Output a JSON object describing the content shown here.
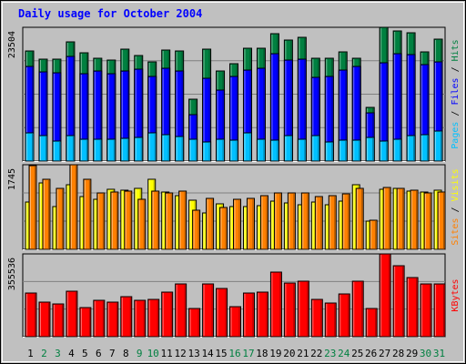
{
  "title": "Daily usage for October 2004",
  "colors": {
    "background": "#c0c0c0",
    "title": "#0000ff",
    "hits": "#008040",
    "files": "#0000ff",
    "pages": "#00c0ff",
    "visits": "#ffff00",
    "sites": "#ff8000",
    "kbytes": "#ff0000",
    "weekend_day": "#008040",
    "weekday": "#000000",
    "slash": "#000000"
  },
  "chart_data": [
    {
      "type": "bar",
      "panel": "hits-files-pages",
      "ymax_label": "23504",
      "ymax": 23504,
      "right_label": [
        {
          "text": "Pages",
          "color_key": "pages"
        },
        {
          "text": " / ",
          "color_key": "slash"
        },
        {
          "text": "Files",
          "color_key": "files"
        },
        {
          "text": " / ",
          "color_key": "slash"
        },
        {
          "text": "Hits",
          "color_key": "hits"
        }
      ],
      "categories": [
        "1",
        "2",
        "3",
        "4",
        "5",
        "6",
        "7",
        "8",
        "9",
        "10",
        "11",
        "12",
        "13",
        "14",
        "15",
        "16",
        "17",
        "18",
        "19",
        "20",
        "21",
        "22",
        "23",
        "24",
        "25",
        "26",
        "27",
        "28",
        "29",
        "30",
        "31"
      ],
      "series": [
        {
          "name": "Hits",
          "color_key": "hits",
          "values": [
            19300,
            17900,
            17900,
            21000,
            19000,
            18000,
            17800,
            19600,
            18600,
            17400,
            19500,
            19300,
            10800,
            19600,
            15800,
            17100,
            19800,
            19900,
            22400,
            21200,
            21700,
            18000,
            18000,
            19200,
            18000,
            9500,
            23504,
            22800,
            22600,
            19200,
            21500
          ]
        },
        {
          "name": "Files",
          "color_key": "files",
          "values": [
            16700,
            15700,
            15500,
            18400,
            15300,
            15900,
            15300,
            15800,
            16100,
            14900,
            16300,
            15900,
            8100,
            14500,
            12500,
            14900,
            16000,
            16300,
            18900,
            17800,
            17900,
            14700,
            14900,
            16000,
            16600,
            8400,
            17300,
            18900,
            18700,
            17000,
            17400
          ]
        },
        {
          "name": "Pages",
          "color_key": "pages",
          "values": [
            4900,
            4400,
            3500,
            4400,
            3900,
            3900,
            3900,
            4000,
            4100,
            5000,
            4600,
            4300,
            3900,
            3400,
            3800,
            3700,
            4900,
            3900,
            3700,
            4400,
            3900,
            4500,
            3400,
            3700,
            3700,
            4200,
            3500,
            3900,
            4400,
            4600,
            5300
          ]
        }
      ]
    },
    {
      "type": "bar",
      "panel": "visits-sites",
      "ymax_label": "1745",
      "ymax": 1745,
      "right_label": [
        {
          "text": "Sites",
          "color_key": "sites"
        },
        {
          "text": " / ",
          "color_key": "slash"
        },
        {
          "text": "Visits",
          "color_key": "visits"
        }
      ],
      "categories": [
        "1",
        "2",
        "3",
        "4",
        "5",
        "6",
        "7",
        "8",
        "9",
        "10",
        "11",
        "12",
        "13",
        "14",
        "15",
        "16",
        "17",
        "18",
        "19",
        "20",
        "21",
        "22",
        "23",
        "24",
        "25",
        "26",
        "27",
        "28",
        "29",
        "30",
        "31"
      ],
      "series": [
        {
          "name": "Visits",
          "color_key": "visits",
          "values": [
            970,
            1370,
            880,
            1340,
            1080,
            1030,
            1240,
            1220,
            1260,
            1450,
            1190,
            1100,
            1020,
            750,
            930,
            890,
            880,
            910,
            1000,
            950,
            920,
            970,
            920,
            1000,
            1330,
            580,
            1230,
            1260,
            1200,
            1180,
            1220
          ]
        },
        {
          "name": "Sites",
          "color_key": "sites",
          "values": [
            1730,
            1440,
            1250,
            1750,
            1440,
            1170,
            1190,
            1200,
            1030,
            1210,
            1160,
            1210,
            800,
            1050,
            860,
            1030,
            1060,
            1110,
            1160,
            1170,
            1160,
            1090,
            1100,
            1150,
            1250,
            600,
            1270,
            1260,
            1220,
            1170,
            1190
          ]
        }
      ]
    },
    {
      "type": "bar",
      "panel": "kbytes",
      "ymax_label": "355536",
      "ymax": 355536,
      "right_label": [
        {
          "text": "KBytes",
          "color_key": "kbytes"
        }
      ],
      "categories": [
        "1",
        "2",
        "3",
        "4",
        "5",
        "6",
        "7",
        "8",
        "9",
        "10",
        "11",
        "12",
        "13",
        "14",
        "15",
        "16",
        "17",
        "18",
        "19",
        "20",
        "21",
        "22",
        "23",
        "24",
        "25",
        "26",
        "27",
        "28",
        "29",
        "30",
        "31"
      ],
      "series": [
        {
          "name": "KBytes",
          "color_key": "kbytes",
          "values": [
            189000,
            149000,
            140000,
            195000,
            125000,
            155000,
            149000,
            172000,
            157000,
            162000,
            193000,
            227000,
            123000,
            225000,
            208000,
            127000,
            189000,
            193000,
            277000,
            229000,
            239000,
            159000,
            146000,
            184000,
            239000,
            122000,
            355536,
            305000,
            254000,
            226000,
            226000
          ]
        }
      ]
    }
  ],
  "days": [
    {
      "label": "1",
      "weekend": false
    },
    {
      "label": "2",
      "weekend": true
    },
    {
      "label": "3",
      "weekend": true
    },
    {
      "label": "4",
      "weekend": false
    },
    {
      "label": "5",
      "weekend": false
    },
    {
      "label": "6",
      "weekend": false
    },
    {
      "label": "7",
      "weekend": false
    },
    {
      "label": "8",
      "weekend": false
    },
    {
      "label": "9",
      "weekend": true
    },
    {
      "label": "10",
      "weekend": true
    },
    {
      "label": "11",
      "weekend": false
    },
    {
      "label": "12",
      "weekend": false
    },
    {
      "label": "13",
      "weekend": false
    },
    {
      "label": "14",
      "weekend": false
    },
    {
      "label": "15",
      "weekend": false
    },
    {
      "label": "16",
      "weekend": true
    },
    {
      "label": "17",
      "weekend": true
    },
    {
      "label": "18",
      "weekend": false
    },
    {
      "label": "19",
      "weekend": false
    },
    {
      "label": "20",
      "weekend": false
    },
    {
      "label": "21",
      "weekend": false
    },
    {
      "label": "22",
      "weekend": false
    },
    {
      "label": "23",
      "weekend": true
    },
    {
      "label": "24",
      "weekend": true
    },
    {
      "label": "25",
      "weekend": false
    },
    {
      "label": "26",
      "weekend": false
    },
    {
      "label": "27",
      "weekend": false
    },
    {
      "label": "28",
      "weekend": false
    },
    {
      "label": "29",
      "weekend": false
    },
    {
      "label": "30",
      "weekend": true
    },
    {
      "label": "31",
      "weekend": true
    }
  ]
}
